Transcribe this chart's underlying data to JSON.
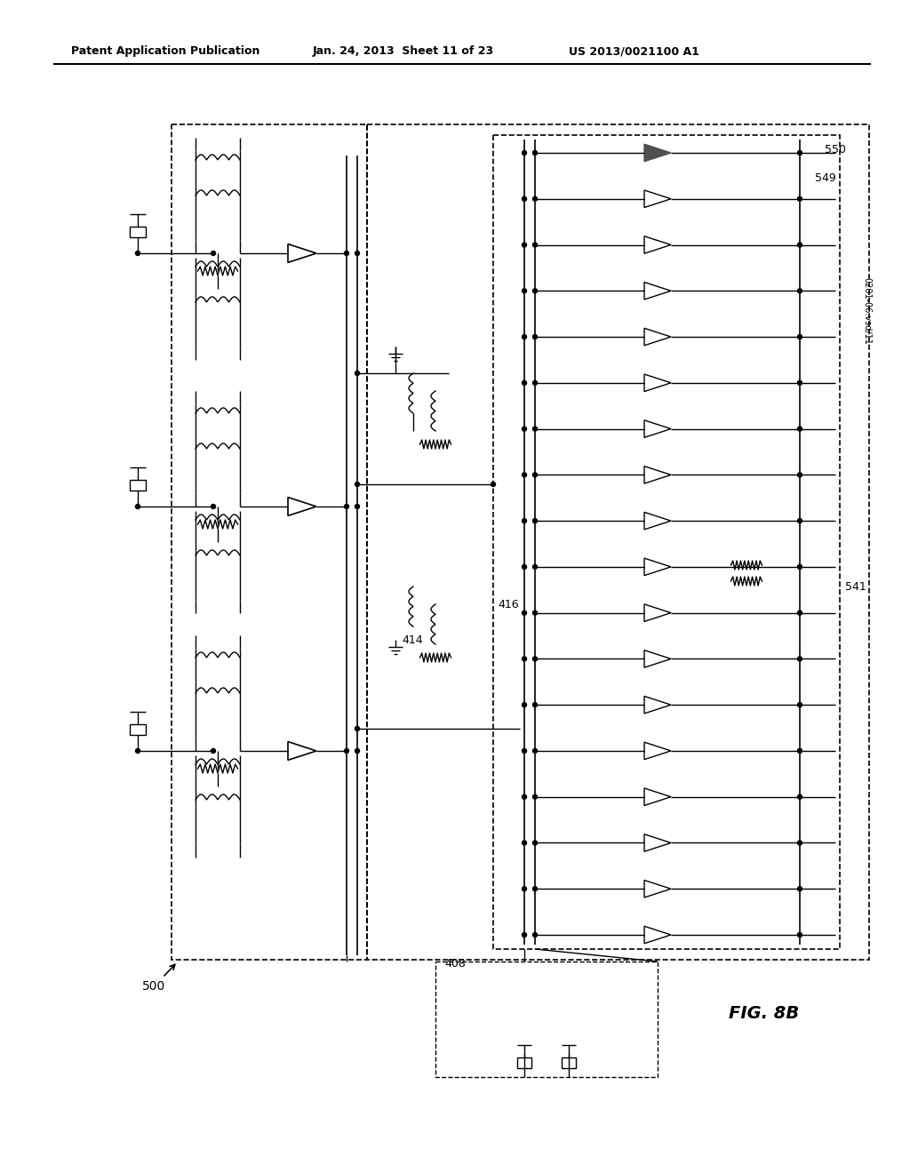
{
  "title_left": "Patent Application Publication",
  "title_mid": "Jan. 24, 2013  Sheet 11 of 23",
  "title_right": "US 2013/0021100 A1",
  "fig_label": "FIG. 8B",
  "file_label": "0201-06.vsd/11",
  "background_color": "#ffffff",
  "label_500": "500",
  "label_408": "408",
  "label_414": "414",
  "label_416": "416",
  "label_541": "541",
  "label_549": "549",
  "label_550": "550"
}
